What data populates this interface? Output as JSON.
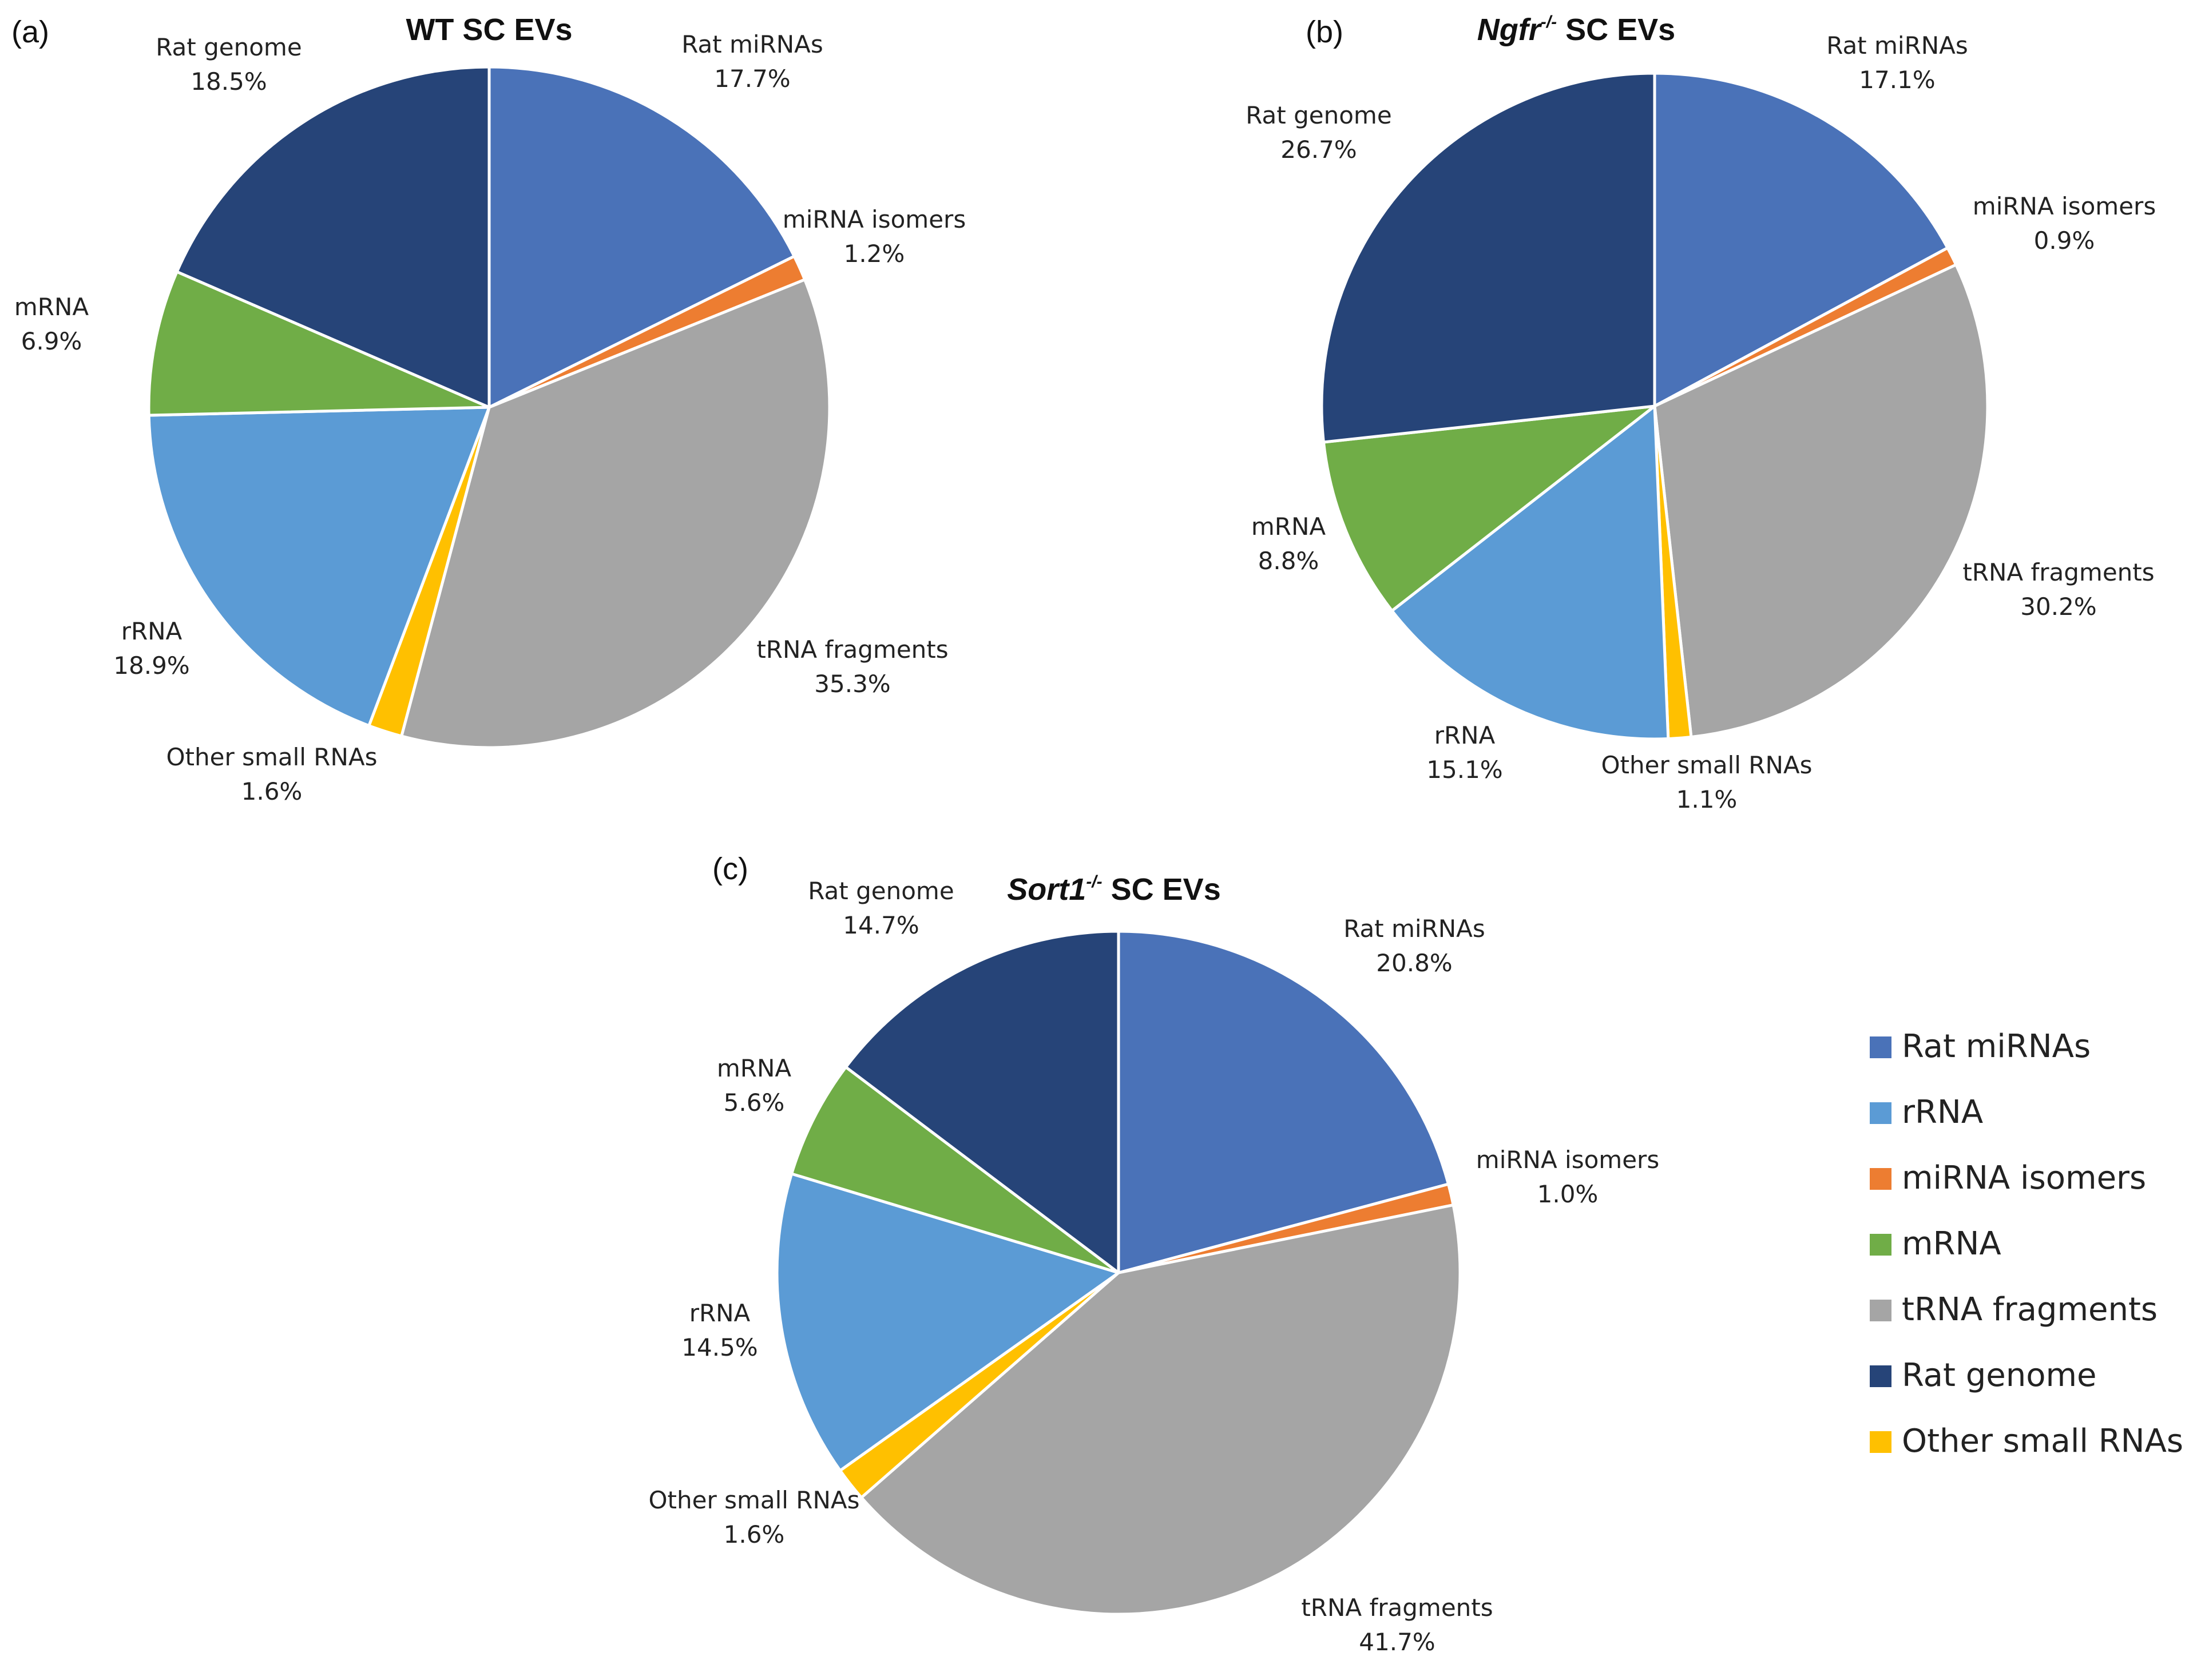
{
  "chart_data": [
    {
      "type": "pie",
      "panel": "(a)",
      "title_main": "WT SC EVs",
      "title_italic": "",
      "title_sup": "",
      "title_rest": "",
      "categories": [
        "Rat miRNAs",
        "miRNA isomers",
        "tRNA fragments",
        "Other small RNAs",
        "rRNA",
        "mRNA",
        "Rat genome"
      ],
      "values": [
        17.7,
        1.2,
        35.3,
        1.6,
        18.9,
        6.9,
        18.5
      ],
      "value_labels": [
        "17.7%",
        "1.2%",
        "35.3%",
        "1.6%",
        "18.9%",
        "6.9%",
        "18.5%"
      ]
    },
    {
      "type": "pie",
      "panel": "(b)",
      "title_main": "",
      "title_italic": "Ngfr",
      "title_sup": "-/-",
      "title_rest": " SC EVs",
      "categories": [
        "Rat miRNAs",
        "miRNA isomers",
        "tRNA fragments",
        "Other small RNAs",
        "rRNA",
        "mRNA",
        "Rat genome"
      ],
      "values": [
        17.1,
        0.9,
        30.2,
        1.1,
        15.1,
        8.8,
        26.7
      ],
      "value_labels": [
        "17.1%",
        "0.9%",
        "30.2%",
        "1.1%",
        "15.1%",
        "8.8%",
        "26.7%"
      ]
    },
    {
      "type": "pie",
      "panel": "(c)",
      "title_main": "",
      "title_italic": "Sort1",
      "title_sup": "-/-",
      "title_rest": " SC EVs",
      "categories": [
        "Rat miRNAs",
        "miRNA isomers",
        "tRNA fragments",
        "Other small RNAs",
        "rRNA",
        "mRNA",
        "Rat genome"
      ],
      "values": [
        20.8,
        1.0,
        41.7,
        1.6,
        14.5,
        5.6,
        14.7
      ],
      "value_labels": [
        "20.8%",
        "1.0%",
        "41.7%",
        "1.6%",
        "14.5%",
        "5.6%",
        "14.7%"
      ]
    }
  ],
  "colors": {
    "Rat miRNAs": "#4A72B8",
    "miRNA isomers": "#ED7D31",
    "tRNA fragments": "#A5A5A5",
    "Other small RNAs": "#FFC000",
    "rRNA": "#5B9BD5",
    "mRNA": "#70AD47",
    "Rat genome": "#264478"
  },
  "legend": {
    "entries": [
      "Rat miRNAs",
      "rRNA",
      "miRNA isomers",
      "mRNA",
      "tRNA fragments",
      "Rat genome",
      "Other small RNAs"
    ]
  }
}
